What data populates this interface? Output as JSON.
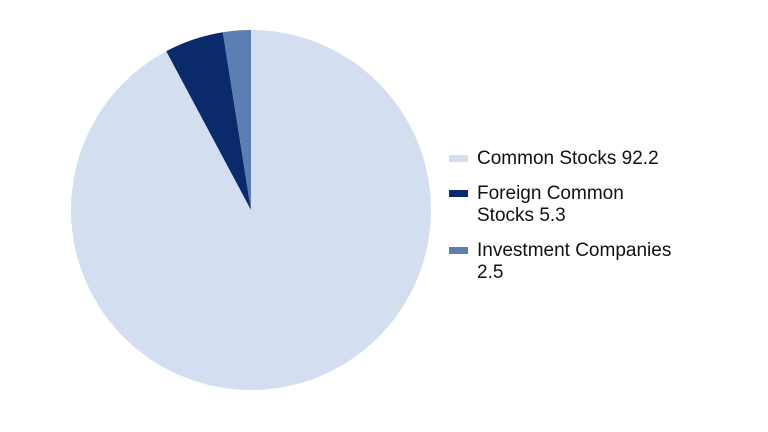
{
  "chart_data": {
    "type": "pie",
    "categories": [
      "Common Stocks",
      "Foreign Common Stocks",
      "Investment Companies"
    ],
    "values": [
      92.2,
      5.3,
      2.5
    ],
    "colors": [
      "#d3dff0",
      "#0b2a6b",
      "#5b7fb3"
    ],
    "legend": "right"
  }
}
